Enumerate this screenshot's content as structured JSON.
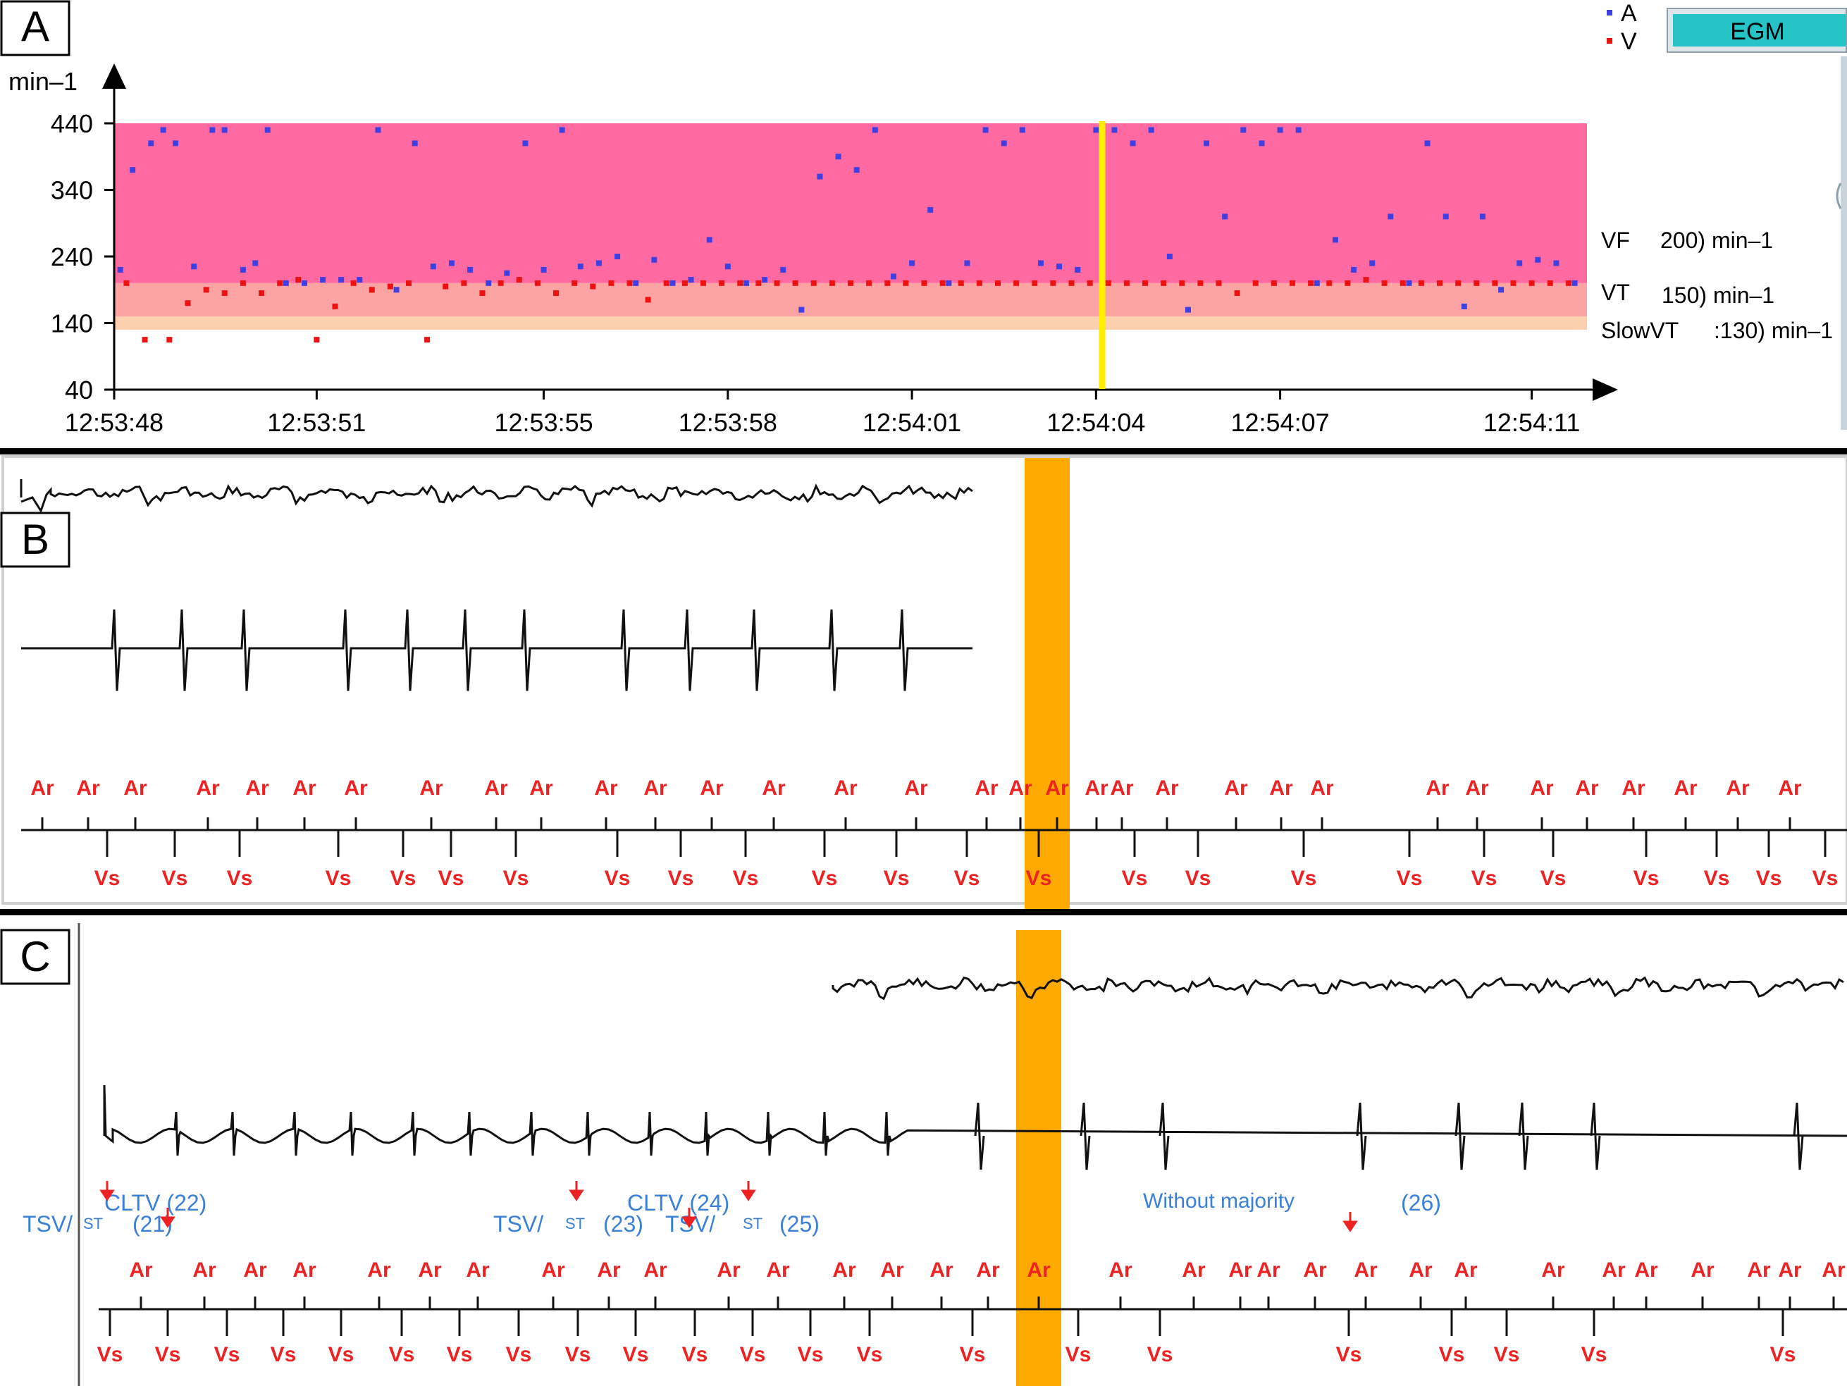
{
  "colors": {
    "vf_zone": "#ff6aa2",
    "vt_zone": "#fca3a3",
    "slowvt_zone": "#fdd0b0",
    "atrial_dot": "#4040e0",
    "ventricular_dot": "#ee1111",
    "cursor_line": "#ffee00",
    "orange_band": "#ffaa00",
    "egm_button": "#26c3c7",
    "marker_red": "#ee2222",
    "annot_blue": "#3a7fd8"
  },
  "panels": {
    "a": {
      "letter": "A"
    },
    "b": {
      "letter": "B"
    },
    "c": {
      "letter": "C"
    }
  },
  "egm_button": {
    "label": "EGM"
  },
  "legend": {
    "a": "A",
    "v": "V"
  },
  "zones": {
    "vf": {
      "name": "VF",
      "value": "200) min–1"
    },
    "vt": {
      "name": "VT",
      "value": "150) min–1"
    },
    "slowvt": {
      "name": "SlowVT",
      "value": ":130) min–1"
    }
  },
  "chart_data": {
    "type": "scatter",
    "ylabel": "min–1",
    "ylim": [
      40,
      440
    ],
    "yticks": [
      440,
      340,
      240,
      140,
      40
    ],
    "xlim": [
      "12:53:48",
      "12:54:12"
    ],
    "xticks": [
      "12:53:48",
      "12:53:51",
      "12:53:55",
      "12:53:58",
      "12:54:01",
      "12:54:04",
      "12:54:07",
      "12:54:11"
    ],
    "cursor_x": "12:54:04.1",
    "zones": [
      {
        "name": "VF",
        "from": 200,
        "to": 440
      },
      {
        "name": "VT",
        "from": 150,
        "to": 200
      },
      {
        "name": "SlowVT",
        "from": 130,
        "to": 150
      }
    ],
    "series": [
      {
        "name": "A",
        "x": [
          "12:53:48.1",
          "12:53:48.3",
          "12:53:48.6",
          "12:53:48.8",
          "12:53:49.0",
          "12:53:49.3",
          "12:53:49.6",
          "12:53:49.8",
          "12:53:50.1",
          "12:53:50.3",
          "12:53:50.5",
          "12:53:50.8",
          "12:53:51.1",
          "12:53:51.4",
          "12:53:51.7",
          "12:53:52.0",
          "12:53:52.3",
          "12:53:52.6",
          "12:53:52.9",
          "12:53:53.2",
          "12:53:53.5",
          "12:53:53.8",
          "12:53:54.1",
          "12:53:54.4",
          "12:53:54.7",
          "12:53:55.0",
          "12:53:55.3",
          "12:53:55.6",
          "12:53:55.9",
          "12:53:56.2",
          "12:53:56.5",
          "12:53:56.8",
          "12:53:57.1",
          "12:53:57.4",
          "12:53:57.7",
          "12:53:58.0",
          "12:53:58.3",
          "12:53:58.6",
          "12:53:58.9",
          "12:53:59.2",
          "12:53:59.5",
          "12:53:59.8",
          "12:54:00.1",
          "12:54:00.4",
          "12:54:00.7",
          "12:54:01.0",
          "12:54:01.3",
          "12:54:01.6",
          "12:54:01.9",
          "12:54:02.2",
          "12:54:02.5",
          "12:54:02.8",
          "12:54:03.1",
          "12:54:03.4",
          "12:54:03.7",
          "12:54:04.0",
          "12:54:04.3",
          "12:54:04.6",
          "12:54:04.9",
          "12:54:05.2",
          "12:54:05.5",
          "12:54:05.8",
          "12:54:06.1",
          "12:54:06.4",
          "12:54:06.7",
          "12:54:07.0",
          "12:54:07.3",
          "12:54:07.6",
          "12:54:07.9",
          "12:54:08.2",
          "12:54:08.5",
          "12:54:08.8",
          "12:54:09.1",
          "12:54:09.4",
          "12:54:09.7",
          "12:54:10.0",
          "12:54:10.3",
          "12:54:10.6",
          "12:54:10.9",
          "12:54:11.2",
          "12:54:11.5",
          "12:54:11.8"
        ],
        "values": [
          220,
          370,
          410,
          430,
          410,
          225,
          430,
          430,
          220,
          230,
          430,
          200,
          200,
          205,
          205,
          205,
          430,
          190,
          410,
          225,
          230,
          220,
          200,
          215,
          410,
          220,
          430,
          225,
          230,
          240,
          200,
          235,
          200,
          205,
          265,
          225,
          200,
          205,
          220,
          160,
          360,
          390,
          370,
          430,
          210,
          230,
          310,
          200,
          230,
          430,
          410,
          430,
          230,
          225,
          220,
          430,
          430,
          410,
          430,
          240,
          160,
          410,
          300,
          430,
          410,
          430,
          430,
          200,
          265,
          220,
          230,
          300,
          200,
          410,
          300,
          165,
          300,
          190,
          230,
          235,
          230,
          200
        ]
      },
      {
        "name": "V",
        "x": [
          "12:53:48.2",
          "12:53:48.5",
          "12:53:48.9",
          "12:53:49.2",
          "12:53:49.5",
          "12:53:49.8",
          "12:53:50.1",
          "12:53:50.4",
          "12:53:50.7",
          "12:53:51.0",
          "12:53:51.3",
          "12:53:51.6",
          "12:53:51.9",
          "12:53:52.2",
          "12:53:52.5",
          "12:53:52.8",
          "12:53:53.1",
          "12:53:53.4",
          "12:53:53.7",
          "12:53:54.0",
          "12:53:54.3",
          "12:53:54.6",
          "12:53:54.9",
          "12:53:55.2",
          "12:53:55.5",
          "12:53:55.8",
          "12:53:56.1",
          "12:53:56.4",
          "12:53:56.7",
          "12:53:57.0",
          "12:53:57.3",
          "12:53:57.6",
          "12:53:57.9",
          "12:53:58.2",
          "12:53:58.5",
          "12:53:58.8",
          "12:53:59.1",
          "12:53:59.4",
          "12:53:59.7",
          "12:54:00.0",
          "12:54:00.3",
          "12:54:00.6",
          "12:54:00.9",
          "12:54:01.2",
          "12:54:01.5",
          "12:54:01.8",
          "12:54:02.1",
          "12:54:02.4",
          "12:54:02.7",
          "12:54:03.0",
          "12:54:03.3",
          "12:54:03.6",
          "12:54:03.9",
          "12:54:04.2",
          "12:54:04.5",
          "12:54:04.8",
          "12:54:05.1",
          "12:54:05.4",
          "12:54:05.7",
          "12:54:06.0",
          "12:54:06.3",
          "12:54:06.6",
          "12:54:06.9",
          "12:54:07.2",
          "12:54:07.5",
          "12:54:07.8",
          "12:54:08.1",
          "12:54:08.4",
          "12:54:08.7",
          "12:54:09.0",
          "12:54:09.3",
          "12:54:09.6",
          "12:54:09.9",
          "12:54:10.2",
          "12:54:10.5",
          "12:54:10.8",
          "12:54:11.1",
          "12:54:11.4",
          "12:54:11.7"
        ],
        "values": [
          200,
          115,
          115,
          170,
          190,
          185,
          200,
          185,
          200,
          205,
          115,
          165,
          200,
          190,
          195,
          200,
          115,
          195,
          200,
          185,
          200,
          205,
          200,
          185,
          200,
          195,
          200,
          200,
          175,
          200,
          200,
          200,
          200,
          200,
          200,
          200,
          200,
          200,
          200,
          200,
          200,
          200,
          200,
          200,
          200,
          200,
          200,
          200,
          200,
          200,
          200,
          200,
          200,
          200,
          200,
          200,
          200,
          200,
          200,
          200,
          185,
          200,
          200,
          200,
          200,
          200,
          200,
          205,
          200,
          200,
          200,
          200,
          200,
          200,
          200,
          200,
          200,
          200,
          200
        ]
      }
    ]
  },
  "b_strip": {
    "a_marker": "Ar",
    "v_marker": "Vs"
  },
  "c_strip": {
    "a_marker": "Ar",
    "v_marker": "Vs",
    "annotations": {
      "cltv22": "CLTV (22)",
      "tsvst21_a": "TSV/",
      "tsvst21_b": "ST",
      "tsvst21_c": "(21)",
      "tsvst23_a": "TSV/",
      "tsvst23_b": "ST",
      "tsvst23_c": "(23)",
      "cltv24": "CLTV (24)",
      "tsvst25_a": "TSV/",
      "tsvst25_b": "ST",
      "tsvst25_c": "(25)",
      "without_majority": "Without majority",
      "wm26": "(26)"
    }
  }
}
